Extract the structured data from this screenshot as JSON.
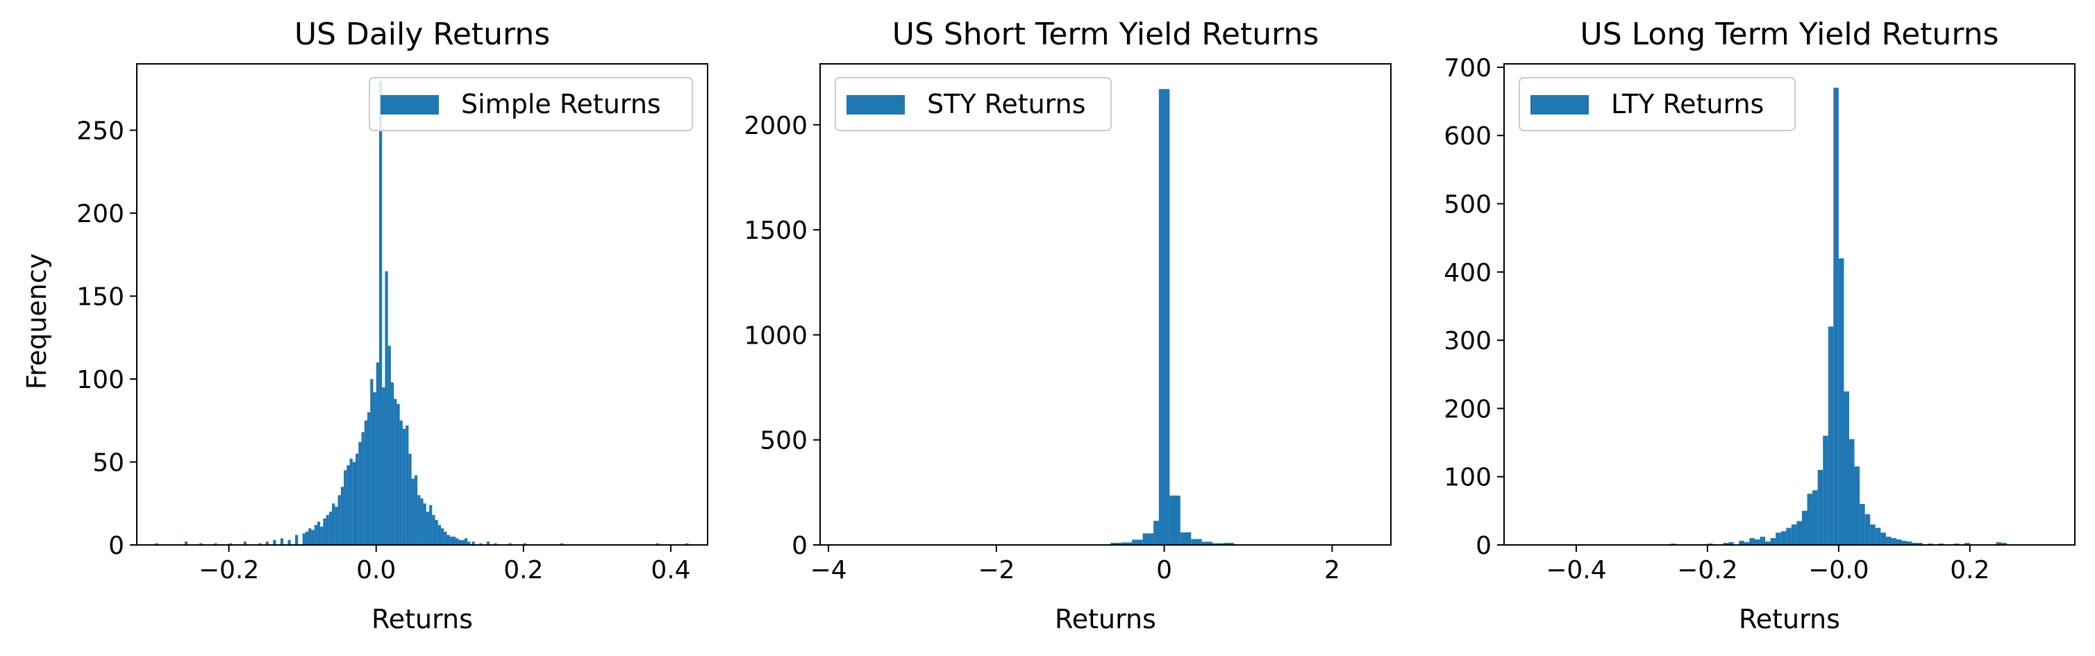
{
  "colors": {
    "bar": "#1f77b4"
  },
  "chart_data": [
    {
      "type": "bar",
      "title": "US Daily Returns",
      "xlabel": "Returns",
      "ylabel": "Frequency",
      "xlim": [
        -0.325,
        0.45
      ],
      "ylim": [
        0,
        290
      ],
      "xticks": [
        -0.2,
        0.0,
        0.2,
        0.4
      ],
      "xtick_labels": [
        "−0.2",
        "0.0",
        "0.2",
        "0.4"
      ],
      "yticks": [
        0,
        50,
        100,
        150,
        200,
        250
      ],
      "ytick_labels": [
        "0",
        "50",
        "100",
        "150",
        "200",
        "250"
      ],
      "legend": {
        "label": "Simple Returns",
        "loc": "upper right"
      },
      "grid": false,
      "bin_width": 0.004,
      "bins": [
        [
          -0.3,
          1
        ],
        [
          -0.26,
          2
        ],
        [
          -0.24,
          1
        ],
        [
          -0.22,
          1
        ],
        [
          -0.2,
          1
        ],
        [
          -0.18,
          2
        ],
        [
          -0.16,
          1
        ],
        [
          -0.15,
          2
        ],
        [
          -0.14,
          3
        ],
        [
          -0.13,
          4
        ],
        [
          -0.12,
          3
        ],
        [
          -0.11,
          6
        ],
        [
          -0.1,
          7
        ],
        [
          -0.096,
          8
        ],
        [
          -0.092,
          10
        ],
        [
          -0.088,
          9
        ],
        [
          -0.084,
          12
        ],
        [
          -0.08,
          14
        ],
        [
          -0.076,
          11
        ],
        [
          -0.072,
          16
        ],
        [
          -0.068,
          18
        ],
        [
          -0.064,
          20
        ],
        [
          -0.06,
          25
        ],
        [
          -0.056,
          23
        ],
        [
          -0.052,
          30
        ],
        [
          -0.048,
          35
        ],
        [
          -0.044,
          45
        ],
        [
          -0.04,
          48
        ],
        [
          -0.036,
          52
        ],
        [
          -0.032,
          50
        ],
        [
          -0.028,
          55
        ],
        [
          -0.024,
          62
        ],
        [
          -0.02,
          68
        ],
        [
          -0.016,
          75
        ],
        [
          -0.012,
          80
        ],
        [
          -0.008,
          100
        ],
        [
          -0.004,
          92
        ],
        [
          0.0,
          110
        ],
        [
          0.004,
          280
        ],
        [
          0.008,
          95
        ],
        [
          0.012,
          165
        ],
        [
          0.016,
          120
        ],
        [
          0.02,
          98
        ],
        [
          0.024,
          88
        ],
        [
          0.028,
          85
        ],
        [
          0.032,
          75
        ],
        [
          0.036,
          70
        ],
        [
          0.04,
          72
        ],
        [
          0.044,
          55
        ],
        [
          0.048,
          40
        ],
        [
          0.052,
          42
        ],
        [
          0.056,
          30
        ],
        [
          0.06,
          28
        ],
        [
          0.064,
          25
        ],
        [
          0.068,
          20
        ],
        [
          0.072,
          24
        ],
        [
          0.076,
          18
        ],
        [
          0.08,
          15
        ],
        [
          0.084,
          12
        ],
        [
          0.088,
          10
        ],
        [
          0.092,
          8
        ],
        [
          0.096,
          6
        ],
        [
          0.1,
          5
        ],
        [
          0.104,
          5
        ],
        [
          0.108,
          4
        ],
        [
          0.112,
          3
        ],
        [
          0.116,
          3
        ],
        [
          0.12,
          4
        ],
        [
          0.124,
          2
        ],
        [
          0.13,
          2
        ],
        [
          0.14,
          1
        ],
        [
          0.15,
          2
        ],
        [
          0.16,
          1
        ],
        [
          0.18,
          1
        ],
        [
          0.2,
          1
        ],
        [
          0.25,
          1
        ],
        [
          0.38,
          1
        ],
        [
          0.42,
          1
        ]
      ]
    },
    {
      "type": "bar",
      "title": "US Short Term Yield Returns",
      "xlabel": "Returns",
      "ylabel": "",
      "xlim": [
        -4.1,
        2.7
      ],
      "ylim": [
        0,
        2290
      ],
      "xticks": [
        -4,
        -2,
        0,
        2
      ],
      "xtick_labels": [
        "−4",
        "−2",
        "0",
        "2"
      ],
      "yticks": [
        0,
        500,
        1000,
        1500,
        2000
      ],
      "ytick_labels": [
        "0",
        "500",
        "1000",
        "1500",
        "2000"
      ],
      "legend": {
        "label": "STY Returns",
        "loc": "upper left"
      },
      "grid": false,
      "bin_width": 0.128,
      "bins": [
        [
          -0.64,
          10
        ],
        [
          -0.512,
          12
        ],
        [
          -0.384,
          25
        ],
        [
          -0.256,
          55
        ],
        [
          -0.128,
          115
        ],
        [
          -0.064,
          2170
        ],
        [
          0.064,
          235
        ],
        [
          0.192,
          60
        ],
        [
          0.32,
          28
        ],
        [
          0.448,
          15
        ],
        [
          0.576,
          8
        ],
        [
          0.704,
          10
        ]
      ]
    },
    {
      "type": "bar",
      "title": "US Long Term Yield Returns",
      "xlabel": "Returns",
      "ylabel": "",
      "xlim": [
        -0.51,
        0.36
      ],
      "ylim": [
        0,
        705
      ],
      "xticks": [
        -0.4,
        -0.2,
        0.0,
        0.2
      ],
      "xtick_labels": [
        "−0.4",
        "−0.2",
        "−0.0",
        "0.2"
      ],
      "yticks": [
        0,
        100,
        200,
        300,
        400,
        500,
        600,
        700
      ],
      "ytick_labels": [
        "0",
        "100",
        "200",
        "300",
        "400",
        "500",
        "600",
        "700"
      ],
      "legend": {
        "label": "LTY Returns",
        "loc": "upper left"
      },
      "grid": false,
      "bin_width": 0.008,
      "bins": [
        [
          -0.256,
          2
        ],
        [
          -0.2,
          2
        ],
        [
          -0.176,
          3
        ],
        [
          -0.168,
          4
        ],
        [
          -0.152,
          6
        ],
        [
          -0.144,
          4
        ],
        [
          -0.136,
          10
        ],
        [
          -0.128,
          8
        ],
        [
          -0.12,
          12
        ],
        [
          -0.112,
          5
        ],
        [
          -0.104,
          10
        ],
        [
          -0.096,
          18
        ],
        [
          -0.088,
          20
        ],
        [
          -0.08,
          25
        ],
        [
          -0.072,
          30
        ],
        [
          -0.064,
          35
        ],
        [
          -0.056,
          50
        ],
        [
          -0.048,
          75
        ],
        [
          -0.04,
          80
        ],
        [
          -0.032,
          110
        ],
        [
          -0.024,
          160
        ],
        [
          -0.016,
          320
        ],
        [
          -0.008,
          670
        ],
        [
          0.0,
          420
        ],
        [
          0.008,
          225
        ],
        [
          0.016,
          155
        ],
        [
          0.024,
          115
        ],
        [
          0.032,
          60
        ],
        [
          0.04,
          45
        ],
        [
          0.048,
          30
        ],
        [
          0.056,
          25
        ],
        [
          0.064,
          18
        ],
        [
          0.072,
          12
        ],
        [
          0.08,
          10
        ],
        [
          0.088,
          8
        ],
        [
          0.096,
          6
        ],
        [
          0.104,
          5
        ],
        [
          0.112,
          3
        ],
        [
          0.12,
          3
        ],
        [
          0.136,
          2
        ],
        [
          0.152,
          2
        ],
        [
          0.176,
          2
        ],
        [
          0.192,
          3
        ],
        [
          0.24,
          4
        ],
        [
          0.248,
          3
        ]
      ]
    }
  ]
}
